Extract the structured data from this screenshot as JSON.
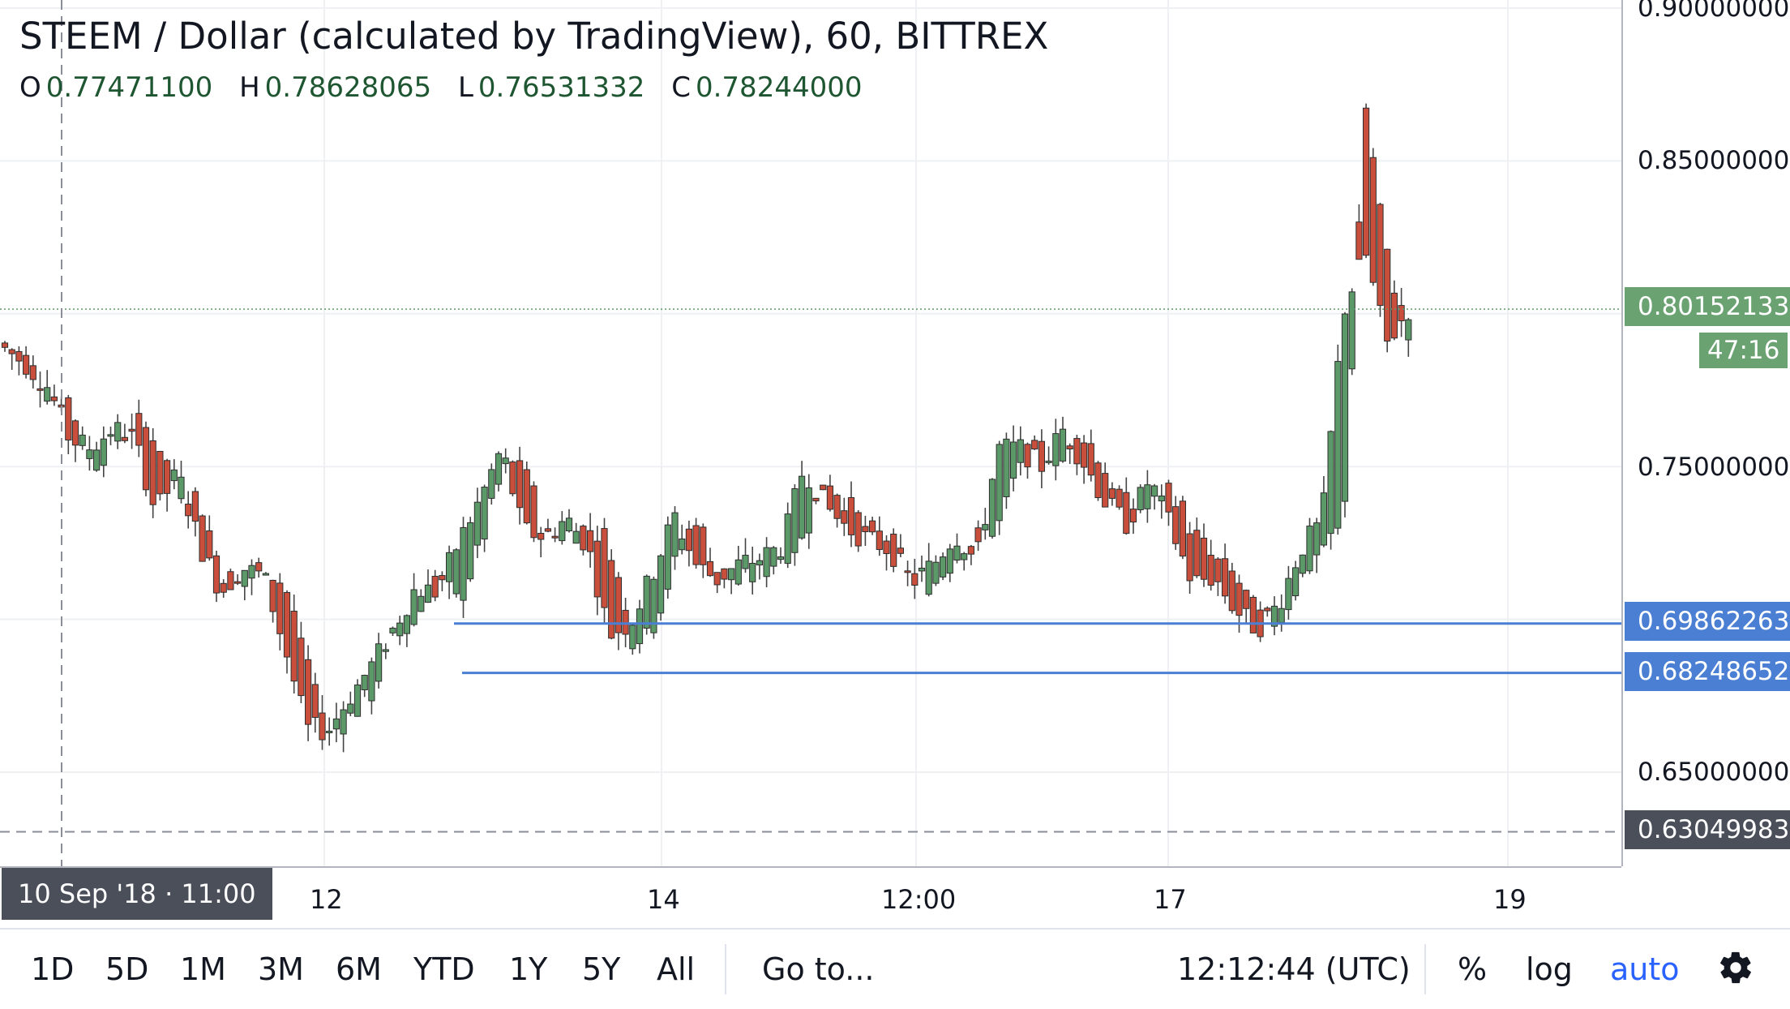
{
  "legend": {
    "title": "STEEM / Dollar (calculated by TradingView), 60, BITTREX",
    "open_label": "O",
    "open": "0.77471100",
    "high_label": "H",
    "high": "0.78628065",
    "low_label": "L",
    "low": "0.76531332",
    "close_label": "C",
    "close": "0.78244000"
  },
  "price_scale": {
    "ticks": [
      "0.90000000",
      "0.85000000",
      "0.75000000",
      "0.65000000"
    ],
    "current_price": "0.80152133",
    "countdown": "47:16",
    "line_level_1": "0.69862263",
    "line_level_2": "0.68248652",
    "crosshair_price": "0.63049983"
  },
  "time_axis": {
    "crosshair_label": "10 Sep '18 · 11:00",
    "ticks": [
      "12",
      "14",
      "12:00",
      "17",
      "19"
    ]
  },
  "toolbar": {
    "ranges": [
      "1D",
      "5D",
      "1M",
      "3M",
      "6M",
      "YTD",
      "1Y",
      "5Y",
      "All"
    ],
    "goto": "Go to...",
    "clock": "12:12:44 (UTC)",
    "percent": "%",
    "log": "log",
    "auto": "auto"
  },
  "colors": {
    "up": "#5b9a68",
    "down": "#c94f3c",
    "candle_outline": "#2e2e2e",
    "horizontal_line": "#4a7fd4",
    "price_badge": "#6aa272",
    "crosshair_badge": "#4a4f5a",
    "auto_accent": "#2962ff"
  },
  "chart_data": {
    "type": "candlestick",
    "symbol": "STEEM / Dollar",
    "interval": "60",
    "exchange": "BITTREX",
    "ylim": [
      0.63,
      0.9
    ],
    "horizontal_lines": [
      0.69862263,
      0.68248652
    ],
    "anchors": [
      [
        0.7905,
        0.7885
      ],
      [
        0.785,
        0.7835
      ],
      [
        0.774,
        0.776
      ],
      [
        0.772,
        0.759
      ],
      [
        0.75,
        0.756
      ],
      [
        0.757,
        0.7625
      ],
      [
        0.765,
        0.759
      ],
      [
        0.76,
        0.735
      ],
      [
        0.743,
        0.748
      ],
      [
        0.74,
        0.725
      ],
      [
        0.716,
        0.709
      ],
      [
        0.71,
        0.717
      ],
      [
        0.719,
        0.714
      ],
      [
        0.71,
        0.69
      ],
      [
        0.688,
        0.664
      ],
      [
        0.662,
        0.664
      ],
      [
        0.668,
        0.675
      ],
      [
        0.676,
        0.685
      ],
      [
        0.693,
        0.697
      ],
      [
        0.699,
        0.71
      ],
      [
        0.715,
        0.709
      ],
      [
        0.705,
        0.725
      ],
      [
        0.723,
        0.739
      ],
      [
        0.747,
        0.756
      ],
      [
        0.754,
        0.729
      ],
      [
        0.727,
        0.727
      ],
      [
        0.728,
        0.733
      ],
      [
        0.73,
        0.724
      ],
      [
        0.726,
        0.695
      ],
      [
        0.694,
        0.699
      ],
      [
        0.698,
        0.715
      ],
      [
        0.717,
        0.734
      ],
      [
        0.734,
        0.718
      ],
      [
        0.716,
        0.713
      ],
      [
        0.712,
        0.718
      ],
      [
        0.715,
        0.72
      ],
      [
        0.721,
        0.724
      ],
      [
        0.726,
        0.75
      ],
      [
        0.748,
        0.737
      ],
      [
        0.738,
        0.73
      ],
      [
        0.729,
        0.726
      ],
      [
        0.726,
        0.723
      ],
      [
        0.715,
        0.712
      ],
      [
        0.711,
        0.718
      ],
      [
        0.72,
        0.728
      ],
      [
        0.727,
        0.719
      ],
      [
        0.73,
        0.756
      ],
      [
        0.752,
        0.756
      ],
      [
        0.756,
        0.75
      ],
      [
        0.752,
        0.762
      ],
      [
        0.761,
        0.751
      ],
      [
        0.748,
        0.738
      ],
      [
        0.737,
        0.731
      ],
      [
        0.736,
        0.746
      ],
      [
        0.744,
        0.73
      ],
      [
        0.729,
        0.712
      ],
      [
        0.719,
        0.714
      ],
      [
        0.714,
        0.703
      ],
      [
        0.701,
        0.697
      ],
      [
        0.699,
        0.705
      ],
      [
        0.713,
        0.723
      ],
      [
        0.724,
        0.732
      ],
      [
        0.73,
        0.801
      ],
      [
        0.87,
        0.82
      ],
      [
        0.819,
        0.79
      ],
      [
        0.792,
        0.8015
      ]
    ]
  }
}
